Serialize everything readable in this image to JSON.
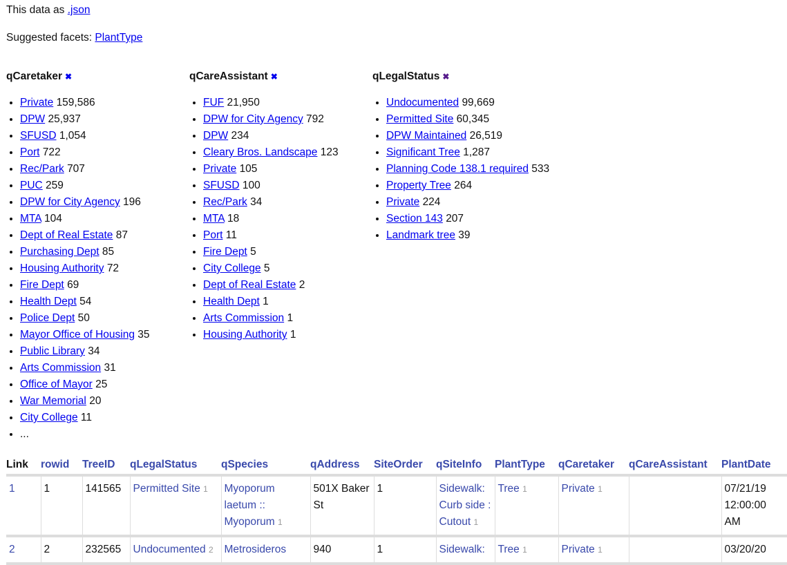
{
  "intro": {
    "prefix": "This data as ",
    "json_link": ".json"
  },
  "suggested": {
    "prefix": "Suggested facets: ",
    "items": [
      "PlantType"
    ]
  },
  "facets": [
    {
      "title": "qCaretaker",
      "remove_color": "#0000ee",
      "items": [
        [
          "Private",
          "159,586"
        ],
        [
          "DPW",
          "25,937"
        ],
        [
          "SFUSD",
          "1,054"
        ],
        [
          "Port",
          "722"
        ],
        [
          "Rec/Park",
          "707"
        ],
        [
          "PUC",
          "259"
        ],
        [
          "DPW for City Agency",
          "196"
        ],
        [
          "MTA",
          "104"
        ],
        [
          "Dept of Real Estate",
          "87"
        ],
        [
          "Purchasing Dept",
          "85"
        ],
        [
          "Housing Authority",
          "72"
        ],
        [
          "Fire Dept",
          "69"
        ],
        [
          "Health Dept",
          "54"
        ],
        [
          "Police Dept",
          "50"
        ],
        [
          "Mayor Office of Housing",
          "35"
        ],
        [
          "Public Library",
          "34"
        ],
        [
          "Arts Commission",
          "31"
        ],
        [
          "Office of Mayor",
          "25"
        ],
        [
          "War Memorial",
          "20"
        ],
        [
          "City College",
          "11"
        ]
      ],
      "more": "..."
    },
    {
      "title": "qCareAssistant",
      "remove_color": "#0000ee",
      "items": [
        [
          "FUF",
          "21,950"
        ],
        [
          "DPW for City Agency",
          "792"
        ],
        [
          "DPW",
          "234"
        ],
        [
          "Cleary Bros. Landscape",
          "123"
        ],
        [
          "Private",
          "105"
        ],
        [
          "SFUSD",
          "100"
        ],
        [
          "Rec/Park",
          "34"
        ],
        [
          "MTA",
          "18"
        ],
        [
          "Port",
          "11"
        ],
        [
          "Fire Dept",
          "5"
        ],
        [
          "City College",
          "5"
        ],
        [
          "Dept of Real Estate",
          "2"
        ],
        [
          "Health Dept",
          "1"
        ],
        [
          "Arts Commission",
          "1"
        ],
        [
          "Housing Authority",
          "1"
        ]
      ]
    },
    {
      "title": "qLegalStatus",
      "remove_color": "#551a8b",
      "items": [
        [
          "Undocumented",
          "99,669"
        ],
        [
          "Permitted Site",
          "60,345"
        ],
        [
          "DPW Maintained",
          "26,519"
        ],
        [
          "Significant Tree",
          "1,287"
        ],
        [
          "Planning Code 138.1 required",
          "533"
        ],
        [
          "Property Tree",
          "264"
        ],
        [
          "Private",
          "224"
        ],
        [
          "Section 143",
          "207"
        ],
        [
          "Landmark tree",
          "39"
        ]
      ]
    }
  ],
  "table": {
    "columns": [
      "Link",
      "rowid",
      "TreeID",
      "qLegalStatus",
      "qSpecies",
      "qAddress",
      "SiteOrder",
      "qSiteInfo",
      "PlantType",
      "qCaretaker",
      "qCareAssistant",
      "PlantDate"
    ],
    "rows": [
      {
        "link": "1",
        "rowid": "1",
        "treeid": "141565",
        "legal": "Permitted Site",
        "legal_n": "1",
        "species": "Myoporum laetum :: Myoporum",
        "species_n": "1",
        "address": "501X Baker St",
        "siteorder": "1",
        "siteinfo": "Sidewalk: Curb side : Cutout",
        "siteinfo_n": "1",
        "planttype": "Tree",
        "planttype_n": "1",
        "caretaker": "Private",
        "caretaker_n": "1",
        "assistant": "",
        "plantdate": "07/21/19 12:00:00 AM"
      },
      {
        "link": "2",
        "rowid": "2",
        "treeid": "232565",
        "legal": "Undocumented",
        "legal_n": "2",
        "species": "Metrosideros",
        "species_n": "",
        "address": "940",
        "siteorder": "1",
        "siteinfo": "Sidewalk:",
        "siteinfo_n": "",
        "planttype": "Tree",
        "planttype_n": "1",
        "caretaker": "Private",
        "caretaker_n": "1",
        "assistant": "",
        "plantdate": "03/20/20"
      }
    ]
  }
}
